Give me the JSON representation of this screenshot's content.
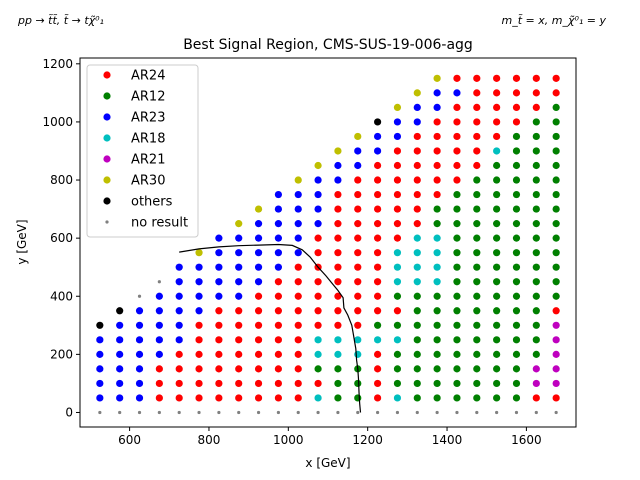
{
  "chart_data": {
    "type": "scatter",
    "title": "Best Signal Region, CMS-SUS-19-006-agg",
    "process_label": "pp → t̃t̃, t̃ → tχ̃⁰₁",
    "mass_label": "m_t̃ = x, m_χ̃⁰₁ = y",
    "xlabel": "x [GeV]",
    "ylabel": "y [GeV]",
    "xlim": [
      475,
      1725
    ],
    "ylim": [
      -50,
      1220
    ],
    "xticks": [
      600,
      800,
      1000,
      1200,
      1400,
      1600
    ],
    "yticks": [
      0,
      200,
      400,
      600,
      800,
      1000,
      1200
    ],
    "legend_position": "upper-left",
    "grid": false,
    "legend": [
      {
        "label": "AR24",
        "color": "#ff0000",
        "marker": "dot"
      },
      {
        "label": "AR12",
        "color": "#008000",
        "marker": "dot"
      },
      {
        "label": "AR23",
        "color": "#0000ff",
        "marker": "dot"
      },
      {
        "label": "AR18",
        "color": "#00bfbf",
        "marker": "dot"
      },
      {
        "label": "AR21",
        "color": "#bf00bf",
        "marker": "dot"
      },
      {
        "label": "AR30",
        "color": "#bfbf00",
        "marker": "dot"
      },
      {
        "label": "others",
        "color": "#000000",
        "marker": "dot"
      },
      {
        "label": "no result",
        "color": "#808080",
        "marker": "small-dot"
      }
    ],
    "point_grid": {
      "x_values": [
        525,
        575,
        625,
        675,
        725,
        775,
        825,
        875,
        925,
        975,
        1025,
        1075,
        1125,
        1175,
        1225,
        1275,
        1325,
        1375,
        1425,
        1475,
        1525,
        1575,
        1625,
        1675
      ],
      "y_values": [
        0,
        50,
        100,
        150,
        200,
        250,
        300,
        350,
        400,
        450,
        500,
        550,
        600,
        650,
        700,
        750,
        800,
        850,
        900,
        950,
        1000,
        1050,
        1100,
        1150
      ],
      "code_key": {
        "R": "AR24",
        "G": "AR12",
        "B": "AR23",
        "C": "AR18",
        "M": "AR21",
        "Y": "AR30",
        "K": "others",
        "N": "no result"
      },
      "rows_from_y0": [
        "NNNNNNNNNNNNNNNNNNNNNNNN",
        "BBBRRRRRRRRCGGRCGGGGGGRR",
        "BBBRRRRRRRRRGGRGGGGGGGMM",
        "BBBRRRRRRRRGGGRGGGGGGGMM",
        "BBBBRRRRRRRCCCRGGGGGGGGM",
        "BBBBBRRRRRRCCCCCGGGGGGGM",
        "KBBBBRRRRRRRRRGGGGGGGGGM",
        "-KBBBBRRRRRRRRRRGGGGGGGR",
        "--NBBBBBRRRRRRRGGGGGGGGG",
        "---NBBBBBRRRRRRCCCGGGGGG",
        "----BBBBBBRRRRRCCCGGGGGG",
        "-----YBBBBBRRRRCCCGGGGGG",
        "------BBBBBRRRRRCCGGGGGG",
        "-------YBBBBRRRRRGGGGGGG",
        "--------YBBBRRRRRGGGGGGG",
        "---------BBBRRRRRRGGGGGG",
        "----------YBBRRRRRRGGGGG",
        "-----------YBBRRRRRRGGGG",
        "------------YBBRRRRRCGGG",
        "-------------YBBRRRRRGGG",
        "--------------KBBRRRRRGG",
        "---------------YBBRRRRRG",
        "----------------YBBRRRRR",
        "-----------------YRRRRRR"
      ]
    },
    "contour": [
      [
        725,
        552
      ],
      [
        775,
        563
      ],
      [
        825,
        570
      ],
      [
        875,
        574
      ],
      [
        925,
        576
      ],
      [
        975,
        578
      ],
      [
        1010,
        575
      ],
      [
        1035,
        560
      ],
      [
        1055,
        535
      ],
      [
        1075,
        500
      ],
      [
        1095,
        470
      ],
      [
        1110,
        445
      ],
      [
        1125,
        420
      ],
      [
        1138,
        395
      ],
      [
        1140,
        360
      ],
      [
        1150,
        335
      ],
      [
        1160,
        300
      ],
      [
        1165,
        260
      ],
      [
        1170,
        220
      ],
      [
        1172,
        180
      ],
      [
        1175,
        150
      ],
      [
        1177,
        110
      ],
      [
        1178,
        70
      ],
      [
        1180,
        30
      ],
      [
        1182,
        0
      ]
    ]
  }
}
